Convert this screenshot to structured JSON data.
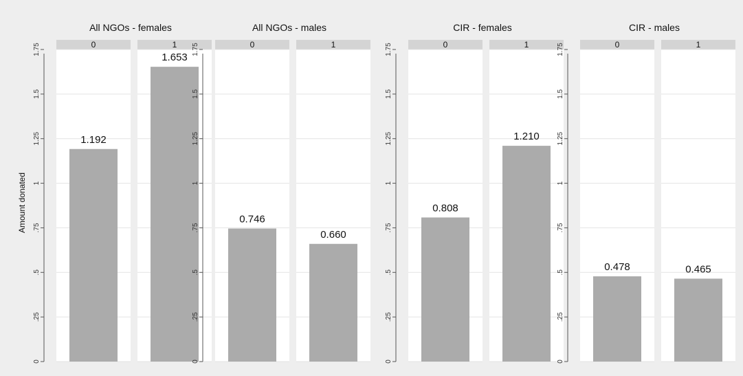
{
  "chart_data": [
    {
      "type": "bar",
      "title": "All NGOs - females",
      "categories": [
        "0",
        "1"
      ],
      "values": [
        1.192,
        1.653
      ],
      "value_labels": [
        "1.192",
        "1.653"
      ],
      "ylabel": "Amount donated",
      "xlabel": "",
      "ylim": [
        0,
        1.75
      ],
      "yticks": [
        "0",
        ".25",
        ".5",
        ".75",
        "1",
        "1.25",
        "1.5",
        "1.75"
      ],
      "ytick_values": [
        0,
        0.25,
        0.5,
        0.75,
        1,
        1.25,
        1.5,
        1.75
      ],
      "grid": true
    },
    {
      "type": "bar",
      "title": "All NGOs - males",
      "categories": [
        "0",
        "1"
      ],
      "values": [
        0.746,
        0.66
      ],
      "value_labels": [
        "0.746",
        "0.660"
      ],
      "ylabel": "",
      "xlabel": "",
      "ylim": [
        0,
        1.75
      ],
      "yticks": [
        "0",
        ".25",
        ".5",
        ".75",
        "1",
        "1.25",
        "1.5",
        "1.75"
      ],
      "ytick_values": [
        0,
        0.25,
        0.5,
        0.75,
        1,
        1.25,
        1.5,
        1.75
      ],
      "grid": true
    },
    {
      "type": "bar",
      "title": "CIR - females",
      "categories": [
        "0",
        "1"
      ],
      "values": [
        0.808,
        1.21
      ],
      "value_labels": [
        "0.808",
        "1.210"
      ],
      "ylabel": "",
      "xlabel": "",
      "ylim": [
        0,
        1.75
      ],
      "yticks": [
        "0",
        ".25",
        ".5",
        ".75",
        "1",
        "1.25",
        "1.5",
        "1.75"
      ],
      "ytick_values": [
        0,
        0.25,
        0.5,
        0.75,
        1,
        1.25,
        1.5,
        1.75
      ],
      "grid": true
    },
    {
      "type": "bar",
      "title": "CIR - males",
      "categories": [
        "0",
        "1"
      ],
      "values": [
        0.478,
        0.465
      ],
      "value_labels": [
        "0.478",
        "0.465"
      ],
      "ylabel": "",
      "xlabel": "",
      "ylim": [
        0,
        1.75
      ],
      "yticks": [
        "0",
        ".25",
        ".5",
        ".75",
        "1",
        "1.25",
        "1.5",
        "1.75"
      ],
      "ytick_values": [
        0,
        0.25,
        0.5,
        0.75,
        1,
        1.25,
        1.5,
        1.75
      ],
      "grid": true
    }
  ],
  "colors": {
    "background": "#eeeeee",
    "plot_area": "#ffffff",
    "strip": "#d4d4d4",
    "bar": "#ababab",
    "grid": "#e3e3e3",
    "axis": "#555555"
  }
}
